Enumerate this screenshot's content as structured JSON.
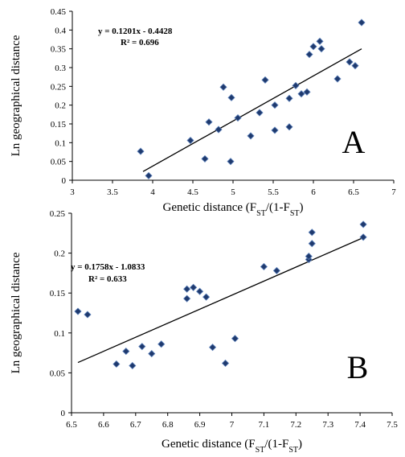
{
  "chart_data": [
    {
      "type": "scatter",
      "panel": "A",
      "color": "#1f3a6e",
      "xlabel": [
        "Genetic distance (F",
        "ST",
        "/(1-F",
        "ST",
        ")"
      ],
      "ylabel": "Ln geographical distance",
      "equation": "y = 0.1201x - 0.4428",
      "r2": "R² = 0.696",
      "x": [
        3.85,
        3.95,
        4.47,
        4.65,
        4.7,
        4.82,
        4.88,
        4.97,
        4.98,
        5.06,
        5.22,
        5.33,
        5.4,
        5.52,
        5.52,
        5.7,
        5.7,
        5.78,
        5.85,
        5.92,
        5.95,
        6.0,
        6.08,
        6.1,
        6.3,
        6.45,
        6.52,
        6.6
      ],
      "values": [
        0.077,
        0.012,
        0.106,
        0.057,
        0.155,
        0.135,
        0.248,
        0.05,
        0.22,
        0.166,
        0.118,
        0.18,
        0.267,
        0.133,
        0.2,
        0.142,
        0.218,
        0.252,
        0.23,
        0.235,
        0.335,
        0.356,
        0.37,
        0.35,
        0.27,
        0.315,
        0.305,
        0.42
      ],
      "trendline": {
        "slope": 0.1201,
        "intercept": -0.4428,
        "x_range": [
          3.88,
          6.6
        ]
      },
      "xlim": [
        3,
        7
      ],
      "xticks": [
        3,
        3.5,
        4,
        4.5,
        5,
        5.5,
        6,
        6.5,
        7
      ],
      "ylim": [
        0,
        0.45
      ],
      "yticks": [
        0,
        0.05,
        0.1,
        0.15,
        0.2,
        0.25,
        0.3,
        0.35,
        0.4,
        0.45
      ]
    },
    {
      "type": "scatter",
      "panel": "B",
      "color": "#1f3a6e",
      "xlabel": [
        "Genetic distance (F",
        "ST",
        "/(1-F",
        "ST",
        ")"
      ],
      "ylabel": "Ln geographical distance",
      "equation": "y = 0.1758x - 1.0833",
      "r2": "R² = 0.633",
      "x": [
        6.52,
        6.55,
        6.64,
        6.67,
        6.69,
        6.72,
        6.75,
        6.78,
        6.86,
        6.86,
        6.88,
        6.9,
        6.92,
        6.94,
        6.98,
        7.01,
        7.1,
        7.14,
        7.24,
        7.24,
        7.25,
        7.25,
        7.41,
        7.41
      ],
      "values": [
        0.127,
        0.123,
        0.061,
        0.077,
        0.059,
        0.083,
        0.074,
        0.086,
        0.143,
        0.155,
        0.157,
        0.152,
        0.145,
        0.082,
        0.062,
        0.093,
        0.183,
        0.178,
        0.192,
        0.196,
        0.212,
        0.226,
        0.22,
        0.236
      ],
      "trendline": {
        "slope": 0.1758,
        "intercept": -1.0833,
        "x_range": [
          6.52,
          7.41
        ]
      },
      "xlim": [
        6.5,
        7.5
      ],
      "xticks": [
        6.5,
        6.6,
        6.7,
        6.8,
        6.9,
        7,
        7.1,
        7.2,
        7.3,
        7.4,
        7.5
      ],
      "ylim": [
        0,
        0.25
      ],
      "yticks": [
        0,
        0.05,
        0.1,
        0.15,
        0.2,
        0.25
      ]
    }
  ]
}
